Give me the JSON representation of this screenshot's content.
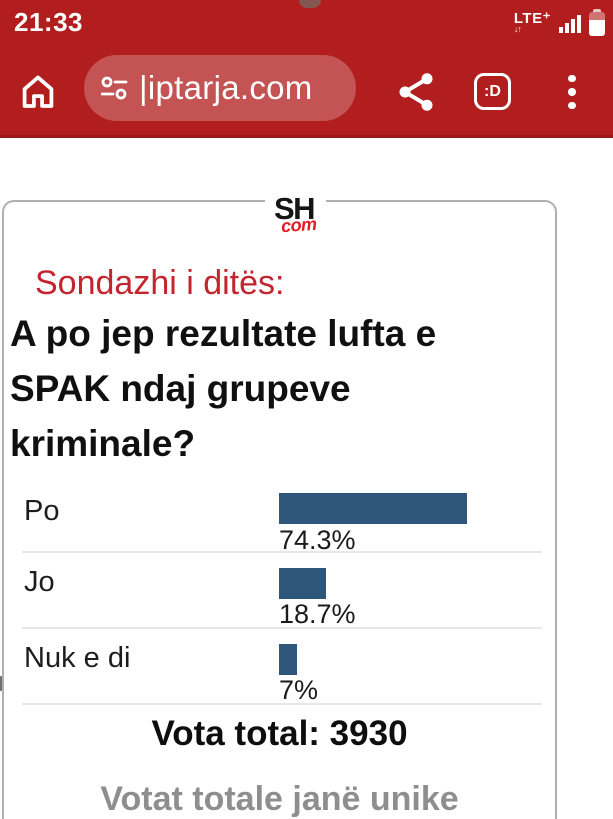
{
  "status_bar": {
    "time": "21:33",
    "network": "LTE⁺",
    "data_arrows": "↓↑"
  },
  "browser": {
    "url_text": "|iptarja.com",
    "tab_badge": ":D"
  },
  "poll": {
    "logo_top": "SH",
    "logo_bottom": "com",
    "kicker": "Sondazhi i ditës:",
    "question_lines": [
      "A po jep rezultate lufta e",
      "SPAK ndaj grupeve",
      "kriminale?"
    ],
    "options": [
      {
        "label": "Po",
        "percent_label": "74.3%",
        "value": 74.3
      },
      {
        "label": "Jo",
        "percent_label": "18.7%",
        "value": 18.7
      },
      {
        "label": "Nuk e di",
        "percent_label": "7%",
        "value": 7
      }
    ],
    "total_label": "Vota total: 3930",
    "note": "Votat totale janë unike"
  },
  "colors": {
    "browser_red": "#b21d1d",
    "toolbar_edge_red": "#9a1818",
    "bar_blue": "#2e567a",
    "kicker_red": "#c3242d",
    "logo_red": "#e11d26",
    "note_gray": "#8e8e8e"
  },
  "chart_data": {
    "type": "bar",
    "orientation": "horizontal",
    "categories": [
      "Po",
      "Jo",
      "Nuk e di"
    ],
    "values": [
      74.3,
      18.7,
      7
    ],
    "value_labels": [
      "74.3%",
      "18.7%",
      "7%"
    ],
    "title": "A po jep rezultate lufta e SPAK ndaj grupeve kriminale?",
    "xlabel": "",
    "ylabel": "",
    "xlim": [
      0,
      100
    ],
    "grid": false,
    "legend": false,
    "total_votes": 3930
  }
}
